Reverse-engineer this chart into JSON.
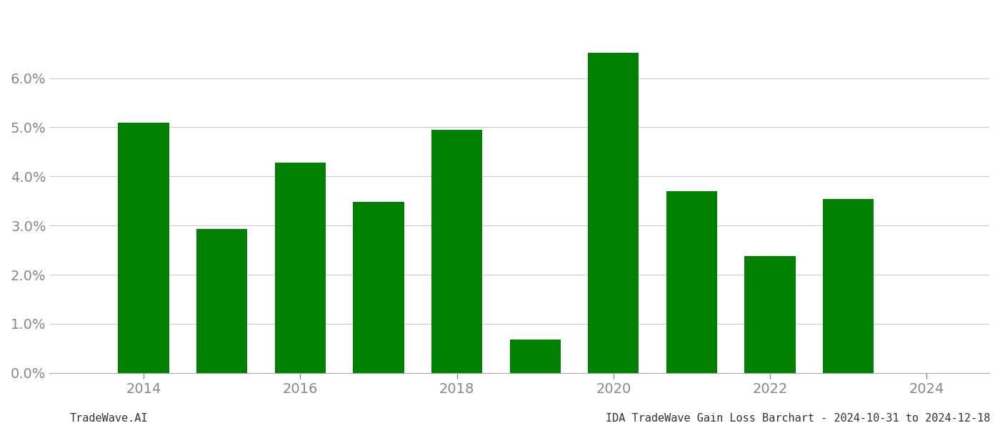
{
  "years": [
    2014,
    2015,
    2016,
    2017,
    2018,
    2019,
    2020,
    2021,
    2022,
    2023
  ],
  "values": [
    0.051,
    0.0293,
    0.0428,
    0.0348,
    0.0495,
    0.0068,
    0.0652,
    0.037,
    0.0238,
    0.0354
  ],
  "bar_color": "#008000",
  "background_color": "#ffffff",
  "ylim": [
    0,
    0.072
  ],
  "ytick_values": [
    0.0,
    0.01,
    0.02,
    0.03,
    0.04,
    0.05,
    0.06
  ],
  "xtick_labels": [
    "2014",
    "2016",
    "2018",
    "2020",
    "2022",
    "2024"
  ],
  "xtick_positions": [
    2014,
    2016,
    2018,
    2020,
    2022,
    2024
  ],
  "xlim": [
    2012.8,
    2024.8
  ],
  "grid_color": "#cccccc",
  "axis_color": "#aaaaaa",
  "tick_color": "#888888",
  "footer_left": "TradeWave.AI",
  "footer_right": "IDA TradeWave Gain Loss Barchart - 2024-10-31 to 2024-12-18",
  "footer_fontsize": 11,
  "tick_fontsize": 14,
  "bar_width": 0.65
}
